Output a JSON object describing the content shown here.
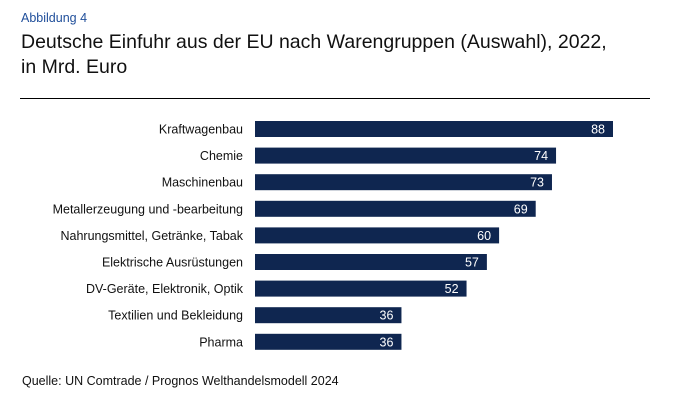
{
  "figure_label": "Abbildung 4",
  "title_line1": "Deutsche Einfuhr aus der EU nach Warengruppen (Auswahl), 2022,",
  "title_line2": "in Mrd. Euro",
  "source": "Quelle: UN Comtrade / Prognos Welthandelsmodell 2024",
  "chart_data": {
    "type": "bar",
    "orientation": "horizontal",
    "title": "Deutsche Einfuhr aus der EU nach Warengruppen (Auswahl), 2022, in Mrd. Euro",
    "xlabel": "",
    "ylabel": "",
    "unit": "Mrd. Euro",
    "categories": [
      "Kraftwagenbau",
      "Chemie",
      "Maschinenbau",
      "Metallerzeugung und -bearbeitung",
      "Nahrungsmittel, Getränke, Tabak",
      "Elektrische Ausrüstungen",
      "DV-Geräte, Elektronik, Optik",
      "Textilien und Bekleidung",
      "Pharma"
    ],
    "values": [
      88,
      74,
      73,
      69,
      60,
      57,
      52,
      36,
      36
    ],
    "xlim": [
      0,
      88
    ],
    "grid": false,
    "data_labels": true,
    "bar_color": "#0f2650",
    "label_color": "#ffffff"
  }
}
